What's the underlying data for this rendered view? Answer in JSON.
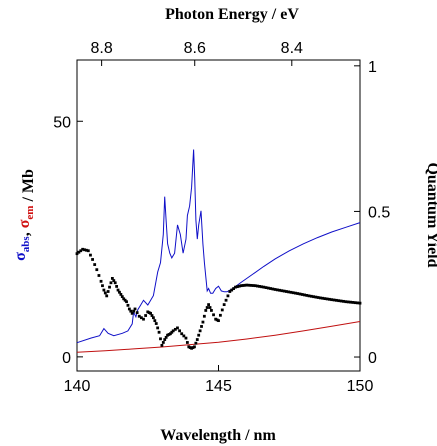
{
  "chart_data": {
    "type": "line",
    "title": "",
    "top_axis": {
      "label": "Photon Energy / eV",
      "ticks": [
        {
          "label": "8.8",
          "wavelength": 140.87
        },
        {
          "label": "8.6",
          "wavelength": 144.16
        },
        {
          "label": "8.4",
          "wavelength": 147.59
        }
      ]
    },
    "x_axis": {
      "label": "Wavelength / nm",
      "range": [
        140,
        150
      ],
      "ticks": [
        "140",
        "145",
        "150"
      ]
    },
    "left_axis": {
      "label_parts": [
        {
          "text": "σ",
          "sub": "abs",
          "color": "#1010c8"
        },
        {
          "text": ", ",
          "sub": "",
          "color": "#000000"
        },
        {
          "text": "σ",
          "sub": "em",
          "color": "#d01010"
        },
        {
          "text": " / Mb",
          "sub": "",
          "color": "#000000"
        }
      ],
      "range": [
        -3,
        63
      ],
      "ticks": [
        "0",
        "50"
      ]
    },
    "right_axis": {
      "label": "Quantum Yield",
      "range": [
        -0.048,
        1.02
      ],
      "ticks": [
        "0",
        "0.5",
        "1"
      ]
    },
    "grid": false,
    "series": [
      {
        "axis": "left",
        "color": "#1010c8",
        "style": "line",
        "x": [
          140,
          140.5,
          140.8,
          140.95,
          141.1,
          141.3,
          141.6,
          141.8,
          141.95,
          142.0,
          142.08,
          142.15,
          142.25,
          142.35,
          142.5,
          142.7,
          142.85,
          142.95,
          143.05,
          143.1,
          143.15,
          143.2,
          143.28,
          143.35,
          143.45,
          143.55,
          143.65,
          143.75,
          143.85,
          143.9,
          143.98,
          144.05,
          144.12,
          144.16,
          144.2,
          144.25,
          144.3,
          144.38,
          144.45,
          144.5,
          144.55,
          144.6,
          144.65,
          144.72,
          144.8,
          144.9,
          145.0,
          145.05,
          145.1,
          145.2,
          145.3,
          145.5,
          145.8,
          146.2,
          146.6,
          147.0,
          147.5,
          148.0,
          148.5,
          149.0,
          149.5,
          150.0
        ],
        "y": [
          3.0,
          4.0,
          4.5,
          6.0,
          5.0,
          4.5,
          5.0,
          5.5,
          7.0,
          9.5,
          8.5,
          10.0,
          11.0,
          12.0,
          11.0,
          13.0,
          18.0,
          20.0,
          26.0,
          34.0,
          29.0,
          24.0,
          22.0,
          21.0,
          22.0,
          28.0,
          26.0,
          22.0,
          25.0,
          30.0,
          32.0,
          36.0,
          44.0,
          38.0,
          29.0,
          25.0,
          28.0,
          31.0,
          24.0,
          20.0,
          17.0,
          14.0,
          14.5,
          13.5,
          13.5,
          14.5,
          15.0,
          14.5,
          14.0,
          13.8,
          13.8,
          14.5,
          15.8,
          17.5,
          19.2,
          20.8,
          22.5,
          24.0,
          25.3,
          26.5,
          27.5,
          28.5
        ]
      },
      {
        "axis": "left",
        "color": "#c01010",
        "style": "line",
        "x": [
          140,
          141,
          142,
          143,
          144,
          145,
          146,
          147,
          148,
          149,
          150
        ],
        "y": [
          1.0,
          1.3,
          1.7,
          2.1,
          2.6,
          3.1,
          3.8,
          4.6,
          5.5,
          6.5,
          7.5
        ]
      },
      {
        "axis": "right",
        "color": "#000000",
        "style": "points",
        "x": [
          140,
          140.2,
          140.4,
          140.55,
          140.7,
          140.85,
          140.95,
          141.05,
          141.15,
          141.25,
          141.35,
          141.45,
          141.55,
          141.65,
          141.75,
          141.85,
          141.95,
          142.05,
          142.2,
          142.35,
          142.5,
          142.6,
          142.7,
          142.8,
          142.9,
          143.0,
          143.1,
          143.2,
          143.3,
          143.4,
          143.55,
          143.7,
          143.85,
          143.95,
          144.05,
          144.15,
          144.25,
          144.35,
          144.45,
          144.55,
          144.65,
          144.75,
          144.9,
          145.0,
          145.2,
          145.4,
          145.6,
          145.8,
          146.0,
          146.3,
          146.6,
          147.0,
          147.4,
          147.8,
          148.2,
          148.6,
          149.0,
          149.5,
          150.0
        ],
        "y": [
          0.355,
          0.37,
          0.365,
          0.335,
          0.3,
          0.26,
          0.23,
          0.21,
          0.24,
          0.27,
          0.255,
          0.23,
          0.215,
          0.2,
          0.19,
          0.165,
          0.15,
          0.165,
          0.14,
          0.13,
          0.155,
          0.15,
          0.135,
          0.115,
          0.085,
          0.04,
          0.06,
          0.075,
          0.08,
          0.09,
          0.1,
          0.08,
          0.065,
          0.035,
          0.03,
          0.035,
          0.06,
          0.09,
          0.12,
          0.16,
          0.18,
          0.16,
          0.13,
          0.125,
          0.18,
          0.225,
          0.24,
          0.245,
          0.247,
          0.245,
          0.24,
          0.232,
          0.225,
          0.218,
          0.21,
          0.203,
          0.197,
          0.19,
          0.185
        ]
      }
    ]
  }
}
